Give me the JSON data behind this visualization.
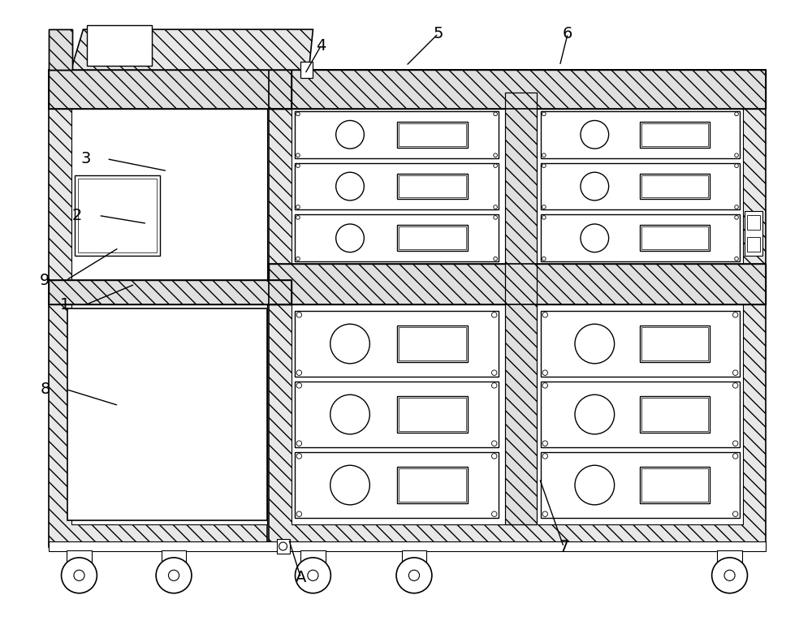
{
  "bg_color": "#ffffff",
  "line_color": "#000000",
  "fig_width": 10.0,
  "fig_height": 7.65,
  "lw_main": 1.5,
  "lw_thin": 0.8,
  "hatch_style": "\\\\"
}
